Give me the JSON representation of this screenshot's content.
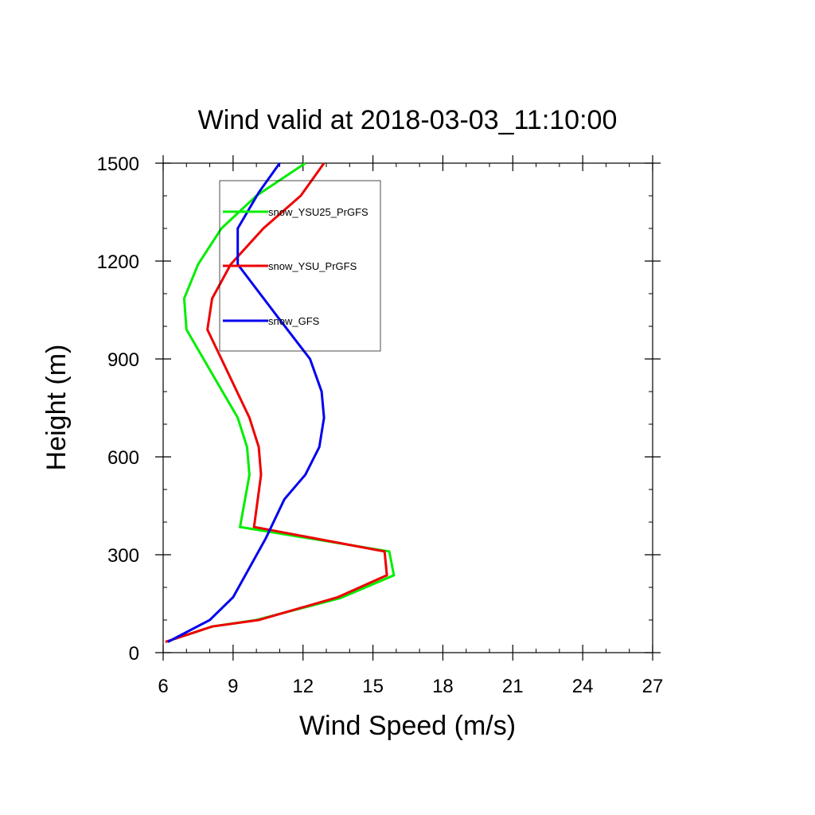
{
  "chart_data": {
    "type": "line",
    "title": "Wind valid at 2018-03-03_11:10:00",
    "xlabel": "Wind Speed (m/s)",
    "ylabel": "Height (m)",
    "xlim": [
      6,
      27
    ],
    "ylim": [
      0,
      1500
    ],
    "xticks": [
      6,
      9,
      12,
      15,
      18,
      21,
      24,
      27
    ],
    "yticks": [
      0,
      300,
      600,
      900,
      1200,
      1500
    ],
    "xtick_labels": [
      "6",
      "9",
      "12",
      "15",
      "18",
      "21",
      "24",
      "27"
    ],
    "ytick_labels": [
      "0",
      "300",
      "600",
      "900",
      "1200",
      "1500"
    ],
    "x_minor_step": 1,
    "y_minor_step": 100,
    "grid": false,
    "legend_position": "top-left inside",
    "series": [
      {
        "name": "snow_YSU25_PrGFS",
        "color": "#00ee00",
        "points": [
          [
            6.1,
            33
          ],
          [
            8.1,
            80
          ],
          [
            10.0,
            100
          ],
          [
            13.6,
            167
          ],
          [
            15.9,
            237
          ],
          [
            15.7,
            310
          ],
          [
            9.3,
            385
          ],
          [
            9.7,
            545
          ],
          [
            9.6,
            630
          ],
          [
            9.2,
            720
          ],
          [
            8.3,
            830
          ],
          [
            7.0,
            990
          ],
          [
            6.9,
            1085
          ],
          [
            7.5,
            1190
          ],
          [
            8.5,
            1300
          ],
          [
            10.0,
            1400
          ],
          [
            12.1,
            1500
          ]
        ]
      },
      {
        "name": "snow_YSU_PrGFS",
        "color": "#ee0000",
        "points": [
          [
            6.1,
            33
          ],
          [
            8.1,
            80
          ],
          [
            10.1,
            100
          ],
          [
            13.5,
            170
          ],
          [
            15.6,
            237
          ],
          [
            15.5,
            310
          ],
          [
            9.9,
            385
          ],
          [
            10.2,
            545
          ],
          [
            10.1,
            630
          ],
          [
            9.7,
            720
          ],
          [
            8.5,
            900
          ],
          [
            7.9,
            990
          ],
          [
            8.1,
            1085
          ],
          [
            8.9,
            1190
          ],
          [
            10.3,
            1300
          ],
          [
            11.9,
            1400
          ],
          [
            12.9,
            1500
          ]
        ]
      },
      {
        "name": "snow_GFS",
        "color": "#0000ee",
        "points": [
          [
            6.2,
            33
          ],
          [
            8.0,
            100
          ],
          [
            9.0,
            170
          ],
          [
            10.4,
            350
          ],
          [
            11.2,
            470
          ],
          [
            12.1,
            545
          ],
          [
            12.7,
            630
          ],
          [
            12.9,
            720
          ],
          [
            12.8,
            800
          ],
          [
            12.3,
            900
          ],
          [
            10.9,
            1030
          ],
          [
            9.2,
            1190
          ],
          [
            9.2,
            1300
          ],
          [
            10.1,
            1410
          ],
          [
            11.0,
            1500
          ]
        ]
      }
    ]
  }
}
